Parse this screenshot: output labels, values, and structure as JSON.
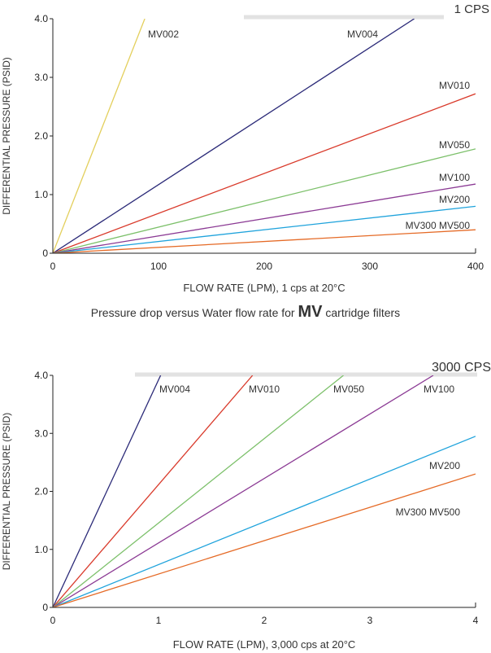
{
  "caption": {
    "prefix": "Pressure drop versus Water flow rate for",
    "brand": "MV",
    "suffix": "cartridge filters"
  },
  "chart_data": [
    {
      "type": "line",
      "title": "1 CPS",
      "xlabel": "FLOW RATE (LPM), 1 cps at 20°C",
      "ylabel": "DIFFERENTIAL PRESSURE (PSID)",
      "xlim": [
        0,
        400
      ],
      "ylim": [
        0,
        4.0
      ],
      "x_ticks": [
        "0",
        "100",
        "200",
        "300",
        "400"
      ],
      "y_ticks": [
        "0",
        "1.0",
        "2.0",
        "3.0",
        "4.0"
      ],
      "grid": false,
      "series": [
        {
          "name": "MV002",
          "color": "#e3cf5c",
          "points": [
            [
              0,
              0
            ],
            [
              87,
              4.0
            ]
          ]
        },
        {
          "name": "MV004",
          "color": "#2b2a78",
          "points": [
            [
              0,
              0
            ],
            [
              342,
              4.0
            ]
          ]
        },
        {
          "name": "MV010",
          "color": "#d93a2b",
          "points": [
            [
              0,
              0
            ],
            [
              400,
              2.72
            ]
          ]
        },
        {
          "name": "MV050",
          "color": "#7cc06a",
          "points": [
            [
              0,
              0
            ],
            [
              400,
              1.78
            ]
          ]
        },
        {
          "name": "MV100",
          "color": "#8b3a94",
          "points": [
            [
              0,
              0
            ],
            [
              400,
              1.18
            ]
          ]
        },
        {
          "name": "MV200",
          "color": "#1fa3dc",
          "points": [
            [
              0,
              0
            ],
            [
              400,
              0.8
            ]
          ]
        },
        {
          "name": "MV300 MV500",
          "color": "#e56a26",
          "points": [
            [
              0,
              0
            ],
            [
              400,
              0.4
            ]
          ]
        }
      ]
    },
    {
      "type": "line",
      "title": "3000 CPS",
      "xlabel": "FLOW RATE (LPM), 3,000 cps at 20°C",
      "ylabel": "DIFFERENTIAL PRESSURE (PSID)",
      "xlim": [
        0,
        4
      ],
      "ylim": [
        0,
        4.0
      ],
      "x_ticks": [
        "0",
        "1",
        "2",
        "3",
        "4"
      ],
      "y_ticks": [
        "0",
        "1.0",
        "2.0",
        "3.0",
        "4.0"
      ],
      "grid": false,
      "series": [
        {
          "name": "MV004",
          "color": "#2b2a78",
          "points": [
            [
              0,
              0
            ],
            [
              1.02,
              4.0
            ]
          ]
        },
        {
          "name": "MV010",
          "color": "#d93a2b",
          "points": [
            [
              0,
              0
            ],
            [
              1.89,
              4.0
            ]
          ]
        },
        {
          "name": "MV050",
          "color": "#7cc06a",
          "points": [
            [
              0,
              0
            ],
            [
              2.75,
              4.0
            ]
          ]
        },
        {
          "name": "MV100",
          "color": "#8b3a94",
          "points": [
            [
              0,
              0
            ],
            [
              3.6,
              4.0
            ]
          ]
        },
        {
          "name": "MV200",
          "color": "#1fa3dc",
          "points": [
            [
              0,
              0
            ],
            [
              4,
              2.95
            ]
          ]
        },
        {
          "name": "MV300 MV500",
          "color": "#e56a26",
          "points": [
            [
              0,
              0
            ],
            [
              4,
              2.3
            ]
          ]
        }
      ]
    }
  ]
}
